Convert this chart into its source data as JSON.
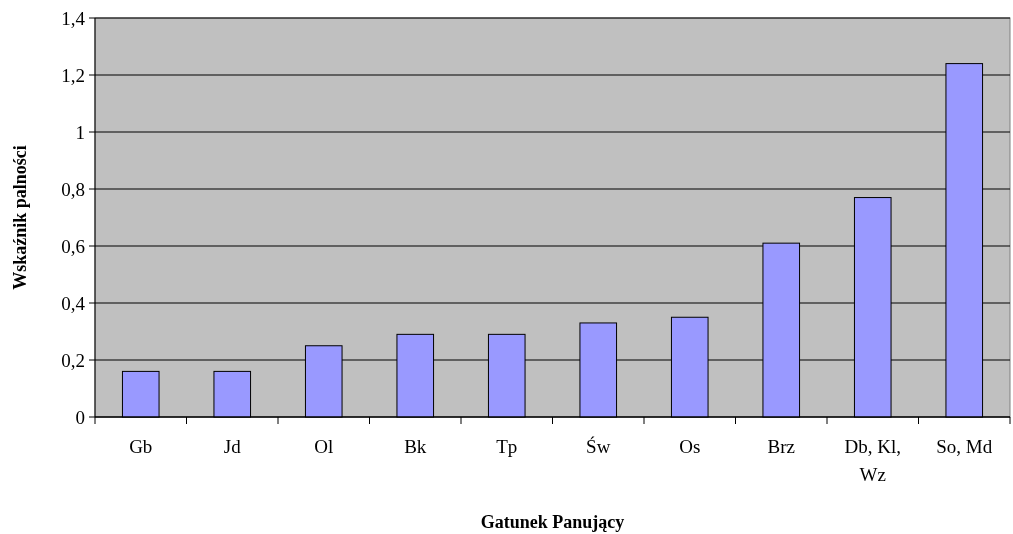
{
  "chart_data": {
    "type": "bar",
    "xlabel": "Gatunek Panujący",
    "ylabel": "Wskaźnik palności",
    "categories": [
      "Gb",
      "Jd",
      "Ol",
      "Bk",
      "Tp",
      "Św",
      "Os",
      "Brz",
      "Db, Kl, Wz",
      "So, Md"
    ],
    "values": [
      0.16,
      0.16,
      0.25,
      0.29,
      0.29,
      0.33,
      0.35,
      0.61,
      0.77,
      1.24
    ],
    "color": "#9999ff",
    "ylim": [
      0,
      1.4
    ],
    "yticks": [
      0,
      {
        "value": 0.2,
        "label": "0,2"
      },
      {
        "value": 0.4,
        "label": "0,4"
      },
      {
        "value": 0.6,
        "label": "0,6"
      },
      {
        "value": 0.8,
        "label": "0,8"
      },
      1,
      {
        "value": 1.2,
        "label": "1,2"
      },
      {
        "value": 1.4,
        "label": "1,4"
      }
    ],
    "grid": "y"
  }
}
